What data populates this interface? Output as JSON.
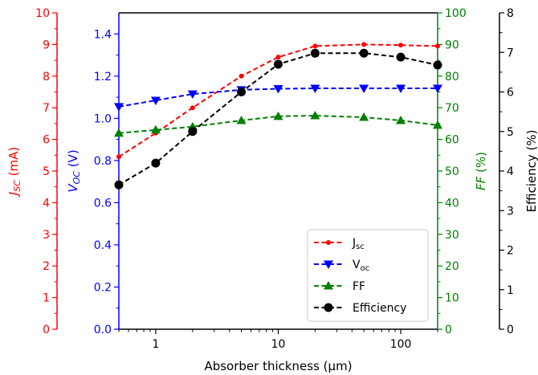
{
  "chart_data": {
    "type": "line",
    "xlabel": "Absorber thickness (µm)",
    "xscale": "log",
    "xlim": [
      0.5,
      200
    ],
    "x_ticks": [
      1,
      10,
      100
    ],
    "x_tick_labels": [
      "1",
      "10",
      "100"
    ],
    "x": [
      0.5,
      1,
      2,
      5,
      10,
      20,
      50,
      100,
      200
    ],
    "legend_position": "lower-right",
    "grid": false,
    "axes": {
      "jsc": {
        "label_main": "J",
        "label_sub": "SC",
        "label_unit": " (mA)",
        "ylim": [
          0,
          10
        ],
        "color": "#ff0000",
        "ticks": [
          0,
          1,
          2,
          3,
          4,
          5,
          6,
          7,
          8,
          9,
          10
        ],
        "tick_labels": [
          "0",
          "1",
          "2",
          "3",
          "4",
          "5",
          "6",
          "7",
          "8",
          "9",
          "10"
        ]
      },
      "voc": {
        "label_main": "V",
        "label_sub": "OC",
        "label_unit": " (V)",
        "ylim": [
          0,
          1.5
        ],
        "color": "#0000ff",
        "ticks": [
          0,
          0.2,
          0.4,
          0.6,
          0.8,
          1.0,
          1.2,
          1.4
        ],
        "tick_labels": [
          "0.0",
          "0.2",
          "0.4",
          "0.6",
          "0.8",
          "1.0",
          "1.2",
          "1.4"
        ]
      },
      "ff": {
        "label_main": "FF",
        "label_sub": "",
        "label_unit": " (%)",
        "ylim": [
          0,
          100
        ],
        "color": "#008000",
        "ticks": [
          0,
          10,
          20,
          30,
          40,
          50,
          60,
          70,
          80,
          90,
          100
        ],
        "tick_labels": [
          "0",
          "10",
          "20",
          "30",
          "40",
          "50",
          "60",
          "70",
          "80",
          "90",
          "100"
        ]
      },
      "eff": {
        "label_main": "Efficiency (%)",
        "label_sub": "",
        "label_unit": "",
        "ylim": [
          0,
          8
        ],
        "color": "#000000",
        "ticks": [
          0,
          1,
          2,
          3,
          4,
          5,
          6,
          7,
          8
        ],
        "tick_labels": [
          "0",
          "1",
          "2",
          "3",
          "4",
          "5",
          "6",
          "7",
          "8"
        ]
      }
    },
    "series": [
      {
        "key": "jsc",
        "legend_main": "J",
        "legend_sub": "sc",
        "marker": "dot",
        "color": "#ff0000",
        "values": [
          5.45,
          6.2,
          7.0,
          8.0,
          8.6,
          8.95,
          9.0,
          8.98,
          8.95
        ]
      },
      {
        "key": "voc",
        "legend_main": "V",
        "legend_sub": "oc",
        "marker": "triangle-down",
        "color": "#0000ff",
        "values": [
          1.055,
          1.085,
          1.115,
          1.135,
          1.14,
          1.142,
          1.142,
          1.142,
          1.142
        ]
      },
      {
        "key": "ff",
        "legend_main": "FF",
        "legend_sub": "",
        "marker": "triangle-up",
        "color": "#008000",
        "values": [
          62,
          63,
          64,
          66,
          67.3,
          67.5,
          67,
          66,
          64.5
        ]
      },
      {
        "key": "eff",
        "legend_main": "Efficiency",
        "legend_sub": "",
        "marker": "circle",
        "color": "#000000",
        "values": [
          3.65,
          4.2,
          5.0,
          6.0,
          6.7,
          6.98,
          6.98,
          6.88,
          6.68
        ]
      }
    ]
  }
}
